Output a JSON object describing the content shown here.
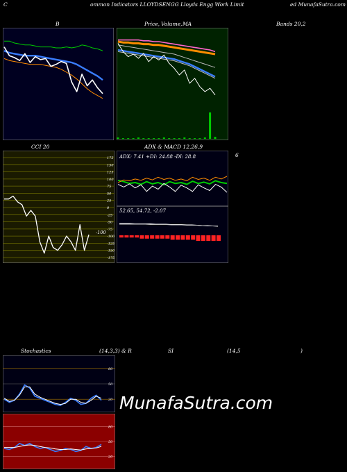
{
  "header": {
    "left": "C",
    "title": "ommon  Indicators LLOYDSENGG Lloyds Engg Work Limit",
    "right": "ed MunafaSutra.com"
  },
  "row1": {
    "bollinger_label": "B",
    "price_label": "Price,",
    "volume_label": "Volume,",
    "ma_label": "MA",
    "bands_label": "Bands 20,2"
  },
  "row2": {
    "cci_label": "CCI 20",
    "adx_label": "ADX  & MACD 12,26,9",
    "right_label": "6",
    "adx_values": "ADX: 7.41  +DI: 24.88  -DI: 28.8",
    "macd_values": "52.65,  54.72,  -2.07",
    "cci_current": "-100"
  },
  "row3": {
    "stoch_label": "Stochastics",
    "stoch_params": "(14,3,3) & R",
    "rsi_label": "SI",
    "rsi_params": "(14,5",
    "rsi_close": ")"
  },
  "watermark": "MunafaSutra.com",
  "colors": {
    "bb_bg": "#000020",
    "price_bg": "#002200",
    "cci_bg": "#1a1a00",
    "adx_bg": "#000014",
    "stoch_bg": "#000014",
    "rsi_bg": "#8b0000",
    "line_white": "#ffffff",
    "line_blue": "#3a7dff",
    "line_green": "#00cc00",
    "line_orange": "#ff8c00",
    "line_pink": "#ff66cc"
  },
  "chart_data": [
    {
      "type": "line",
      "name_panel": "bollinger",
      "ylim": [
        0,
        100
      ],
      "series": [
        {
          "role": "upper",
          "color": "green",
          "values": [
            92,
            92,
            90,
            89,
            88,
            88,
            87,
            86,
            86,
            86,
            85,
            85,
            86,
            85,
            86,
            88,
            87,
            85,
            84,
            82
          ]
        },
        {
          "role": "middle",
          "color": "blue",
          "values": [
            82,
            80,
            79,
            78,
            77,
            77,
            77,
            76,
            75,
            74,
            73,
            72,
            71,
            70,
            68,
            65,
            62,
            59,
            56,
            52
          ]
        },
        {
          "role": "lower",
          "color": "orange",
          "values": [
            74,
            72,
            71,
            70,
            69,
            68,
            68,
            68,
            67,
            66,
            65,
            63,
            60,
            57,
            53,
            48,
            43,
            39,
            36,
            33
          ]
        },
        {
          "role": "price",
          "color": "white",
          "values": [
            86,
            77,
            75,
            72,
            79,
            70,
            76,
            73,
            74,
            66,
            68,
            71,
            69,
            50,
            40,
            58,
            46,
            52,
            44,
            38
          ]
        }
      ]
    },
    {
      "type": "line",
      "name_panel": "price_ma",
      "ylim": [
        0,
        100
      ],
      "series": [
        {
          "role": "ma_pink",
          "color": "pink",
          "values": [
            92,
            92,
            92,
            92,
            92,
            91,
            91,
            90,
            90,
            89,
            88,
            87,
            86,
            85,
            84,
            83,
            82,
            81,
            80,
            78
          ]
        },
        {
          "role": "ma_orange",
          "color": "orange",
          "values": [
            90,
            89,
            89,
            88,
            88,
            87,
            87,
            86,
            86,
            85,
            84,
            83,
            82,
            81,
            80,
            79,
            78,
            77,
            76,
            75
          ]
        },
        {
          "role": "ma_gray1",
          "color": "gray",
          "values": [
            86,
            85,
            84,
            83,
            82,
            81,
            80,
            79,
            78,
            77,
            76,
            75,
            73,
            71,
            69,
            67,
            65,
            63,
            61,
            59
          ]
        },
        {
          "role": "ma_blue",
          "color": "blue",
          "values": [
            80,
            79,
            78,
            77,
            76,
            75,
            74,
            73,
            72,
            71,
            70,
            69,
            67,
            65,
            63,
            60,
            57,
            54,
            51,
            48
          ]
        },
        {
          "role": "ma_gray2",
          "color": "gray",
          "values": [
            78,
            77,
            76,
            75,
            74,
            73,
            72,
            71,
            70,
            69,
            68,
            67,
            65,
            63,
            61,
            58,
            55,
            52,
            49,
            46
          ]
        },
        {
          "role": "price",
          "color": "white",
          "values": [
            88,
            78,
            72,
            75,
            70,
            76,
            66,
            72,
            68,
            74,
            64,
            58,
            50,
            56,
            40,
            46,
            36,
            30,
            34,
            26
          ]
        }
      ],
      "volume": [
        2,
        1,
        1,
        1,
        2,
        1,
        1,
        1,
        1,
        2,
        1,
        1,
        1,
        2,
        1,
        1,
        1,
        2,
        40,
        3
      ]
    },
    {
      "type": "line",
      "name_panel": "cci",
      "ylim": [
        -175,
        175
      ],
      "ticks": [
        175,
        150,
        125,
        100,
        75,
        50,
        25,
        0,
        -25,
        -50,
        -75,
        -100,
        -125,
        -150,
        -175
      ],
      "values": [
        30,
        30,
        40,
        20,
        10,
        -30,
        -10,
        -30,
        -120,
        -160,
        -100,
        -140,
        -150,
        -130,
        -100,
        -120,
        -150,
        -60,
        -150,
        -95
      ]
    },
    {
      "type": "line",
      "name_panel": "adx_macd",
      "ylim": [
        0,
        100
      ],
      "series": [
        {
          "role": "adx_green",
          "color": "green",
          "values": [
            55,
            52,
            48,
            50,
            46,
            52,
            47,
            50,
            45,
            52,
            48,
            50,
            46,
            53,
            48,
            51,
            47,
            54,
            50,
            48
          ]
        },
        {
          "role": "di_orange",
          "color": "orange",
          "values": [
            50,
            56,
            54,
            58,
            55,
            60,
            56,
            62,
            57,
            60,
            55,
            58,
            54,
            62,
            57,
            60,
            55,
            62,
            58,
            64
          ]
        },
        {
          "role": "di_white",
          "color": "white",
          "values": [
            46,
            40,
            47,
            38,
            45,
            30,
            42,
            35,
            48,
            40,
            30,
            44,
            38,
            30,
            45,
            38,
            32,
            46,
            40,
            28
          ]
        },
        {
          "role": "macd",
          "color": "white",
          "values": [
            82,
            82,
            82,
            81,
            81,
            81,
            81,
            80,
            80,
            80,
            79,
            79,
            79,
            78,
            78,
            77,
            76,
            75,
            75,
            74
          ]
        },
        {
          "role": "signal",
          "color": "gray",
          "values": [
            80,
            80,
            80,
            80,
            80,
            80,
            79,
            79,
            79,
            79,
            78,
            78,
            78,
            77,
            77,
            77,
            76,
            76,
            75,
            75
          ]
        }
      ],
      "histogram": [
        -2,
        -2,
        -2,
        -2,
        -3,
        -3,
        -3,
        -3,
        -3,
        -3,
        -4,
        -4,
        -4,
        -4,
        -4,
        -5,
        -5,
        -5,
        -5,
        -5
      ]
    },
    {
      "type": "line",
      "name_panel": "stochastics",
      "ylim": [
        0,
        100
      ],
      "ticks": [
        80,
        50,
        20
      ],
      "series": [
        {
          "role": "k",
          "color": "blue",
          "values": [
            20,
            14,
            18,
            30,
            48,
            42,
            26,
            22,
            18,
            14,
            10,
            8,
            14,
            22,
            18,
            10,
            12,
            22,
            28,
            18
          ]
        },
        {
          "role": "d",
          "color": "white",
          "values": [
            22,
            16,
            18,
            28,
            44,
            44,
            30,
            24,
            20,
            16,
            12,
            10,
            12,
            20,
            20,
            14,
            12,
            18,
            26,
            22
          ]
        }
      ]
    },
    {
      "type": "line",
      "name_panel": "rsi",
      "ylim": [
        0,
        100
      ],
      "ticks": [
        80,
        50,
        20
      ],
      "series": [
        {
          "role": "rsi",
          "color": "blue",
          "values": [
            36,
            34,
            38,
            46,
            42,
            46,
            40,
            36,
            38,
            34,
            30,
            32,
            36,
            34,
            30,
            32,
            40,
            36,
            38,
            44
          ]
        },
        {
          "role": "ma",
          "color": "white",
          "values": [
            38,
            38,
            38,
            40,
            42,
            43,
            42,
            40,
            38,
            37,
            35,
            34,
            34,
            35,
            34,
            33,
            35,
            36,
            37,
            40
          ]
        }
      ]
    }
  ]
}
